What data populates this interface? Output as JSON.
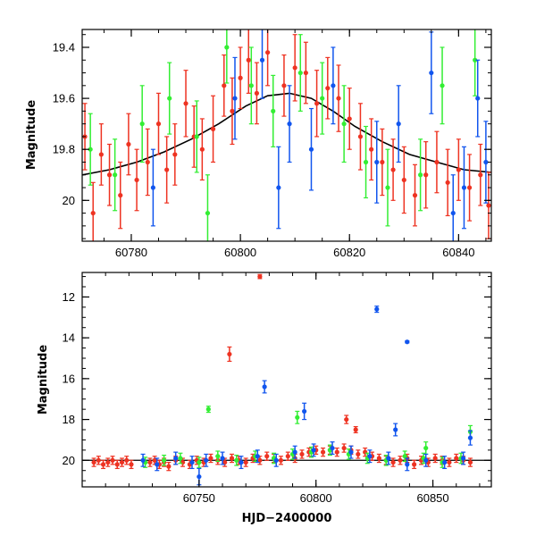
{
  "chart_data": [
    {
      "type": "scatter",
      "title": "",
      "xlabel": "",
      "ylabel": "Magnitude",
      "xlim": [
        60771,
        60846
      ],
      "ylim": [
        19.33,
        20.16
      ],
      "y_inverted": true,
      "grid": false,
      "xticks": [
        60780,
        60800,
        60820,
        60840
      ],
      "yticks": [
        19.4,
        19.6,
        19.8,
        20.0
      ],
      "ytick_labels": [
        "19.4",
        "19.6",
        "19.8",
        "20"
      ],
      "model_curve": {
        "color": "#000000",
        "x": [
          60771,
          60776,
          60781,
          60786,
          60791,
          60796,
          60801,
          60805,
          60809,
          60813,
          60817,
          60821,
          60826,
          60831,
          60836,
          60841,
          60846
        ],
        "y": [
          19.9,
          19.88,
          19.85,
          19.81,
          19.76,
          19.7,
          19.63,
          19.59,
          19.58,
          19.6,
          19.65,
          19.71,
          19.77,
          19.82,
          19.85,
          19.88,
          19.89
        ]
      },
      "series": [
        {
          "color": "#ee3322",
          "x": [
            60771.5,
            60773,
            60774.5,
            60776,
            60778,
            60779.5,
            60781,
            60783,
            60785,
            60786.5,
            60788,
            60790,
            60791.5,
            60793,
            60795,
            60797,
            60798.5,
            60800,
            60801.5,
            60803,
            60805,
            60808,
            60810,
            60812,
            60814,
            60816,
            60818,
            60820,
            60822,
            60824,
            60826,
            60828,
            60830,
            60832,
            60834,
            60836,
            60838,
            60840,
            60842,
            60844,
            60845.5
          ],
          "y": [
            19.75,
            20.05,
            19.82,
            19.9,
            19.98,
            19.78,
            19.92,
            19.85,
            19.7,
            19.88,
            19.82,
            19.62,
            19.75,
            19.8,
            19.72,
            19.55,
            19.65,
            19.52,
            19.45,
            19.58,
            19.42,
            19.55,
            19.48,
            19.5,
            19.62,
            19.56,
            19.6,
            19.68,
            19.75,
            19.8,
            19.85,
            19.88,
            19.92,
            19.98,
            19.9,
            19.85,
            19.93,
            19.88,
            19.95,
            19.9,
            20.02
          ],
          "err": [
            0.13,
            0.12,
            0.12,
            0.12,
            0.13,
            0.12,
            0.12,
            0.13,
            0.12,
            0.13,
            0.12,
            0.13,
            0.12,
            0.12,
            0.13,
            0.12,
            0.13,
            0.12,
            0.13,
            0.12,
            0.13,
            0.12,
            0.13,
            0.12,
            0.13,
            0.12,
            0.13,
            0.12,
            0.13,
            0.12,
            0.13,
            0.12,
            0.13,
            0.12,
            0.13,
            0.12,
            0.13,
            0.12,
            0.13,
            0.12,
            0.13
          ]
        },
        {
          "color": "#33ee33",
          "x": [
            60772.5,
            60777,
            60782,
            60787,
            60792,
            60794,
            60797.5,
            60802,
            60806,
            60811,
            60815,
            60819,
            60823,
            60827,
            60833,
            60837,
            60843
          ],
          "y": [
            19.8,
            19.9,
            19.7,
            19.6,
            19.75,
            20.05,
            19.4,
            19.55,
            19.65,
            19.5,
            19.6,
            19.7,
            19.85,
            19.95,
            19.9,
            19.55,
            19.45
          ],
          "err": [
            0.14,
            0.14,
            0.15,
            0.14,
            0.14,
            0.15,
            0.14,
            0.15,
            0.14,
            0.15,
            0.14,
            0.15,
            0.14,
            0.15,
            0.14,
            0.15,
            0.14
          ]
        },
        {
          "color": "#1155ee",
          "x": [
            60784,
            60799,
            60804,
            60807,
            60809,
            60813,
            60817,
            60825,
            60829,
            60835,
            60839,
            60841,
            60843.5,
            60845
          ],
          "y": [
            19.95,
            19.6,
            19.45,
            19.95,
            19.7,
            19.8,
            19.55,
            19.85,
            19.7,
            19.5,
            20.05,
            19.95,
            19.6,
            19.85
          ],
          "err": [
            0.15,
            0.16,
            0.15,
            0.16,
            0.15,
            0.16,
            0.15,
            0.16,
            0.15,
            0.16,
            0.15,
            0.16,
            0.15,
            0.16
          ]
        }
      ]
    },
    {
      "type": "scatter",
      "title": "",
      "xlabel": "HJD−2400000",
      "ylabel": "Magnitude",
      "xlim": [
        60700,
        60875
      ],
      "ylim": [
        10.8,
        21.3
      ],
      "y_inverted": true,
      "grid": false,
      "xticks": [
        60750,
        60800,
        60850
      ],
      "yticks": [
        12,
        14,
        16,
        18,
        20
      ],
      "ytick_labels": [
        "12",
        "14",
        "16",
        "18",
        "20"
      ],
      "reference_line": {
        "y": 20.0,
        "color": "#000000"
      },
      "series": [
        {
          "color": "#ee3322",
          "x": [
            60705,
            60707,
            60709,
            60711,
            60713,
            60715,
            60717,
            60719,
            60721,
            60729,
            60731,
            60733,
            60735,
            60737,
            60740,
            60743,
            60746,
            60749,
            60752,
            60755,
            60758,
            60761,
            60764,
            60767,
            60770,
            60773,
            60776,
            60779,
            60782,
            60785,
            60788,
            60791,
            60794,
            60797,
            60800,
            60803,
            60806,
            60809,
            60812,
            60815,
            60818,
            60821,
            60824,
            60827,
            60830,
            60833,
            60836,
            60839,
            60842,
            60845,
            60848,
            60851,
            60854,
            60857,
            60860,
            60863,
            60866,
            60763,
            60776,
            60813,
            60817
          ],
          "y": [
            20.1,
            20.0,
            20.2,
            20.1,
            20.0,
            20.2,
            20.1,
            20.0,
            20.2,
            20.1,
            20.0,
            20.2,
            20.1,
            20.3,
            20.0,
            20.1,
            20.2,
            20.0,
            20.1,
            19.9,
            20.0,
            20.1,
            19.9,
            20.0,
            20.1,
            19.9,
            20.0,
            19.8,
            19.9,
            20.0,
            19.8,
            19.9,
            19.7,
            19.6,
            19.5,
            19.6,
            19.5,
            19.6,
            19.4,
            19.5,
            19.7,
            19.6,
            19.8,
            19.9,
            20.0,
            20.1,
            20.0,
            19.9,
            20.2,
            20.0,
            20.1,
            19.9,
            20.0,
            20.1,
            19.9,
            20.0,
            20.1,
            14.8,
            11.0,
            18.0,
            18.5
          ],
          "err": [
            0.2,
            0.2,
            0.2,
            0.2,
            0.2,
            0.2,
            0.2,
            0.2,
            0.2,
            0.2,
            0.2,
            0.2,
            0.2,
            0.2,
            0.2,
            0.2,
            0.2,
            0.2,
            0.2,
            0.2,
            0.2,
            0.2,
            0.2,
            0.2,
            0.2,
            0.2,
            0.2,
            0.2,
            0.2,
            0.2,
            0.2,
            0.2,
            0.2,
            0.2,
            0.2,
            0.2,
            0.2,
            0.2,
            0.2,
            0.2,
            0.2,
            0.2,
            0.2,
            0.2,
            0.2,
            0.2,
            0.2,
            0.2,
            0.2,
            0.2,
            0.2,
            0.2,
            0.2,
            0.2,
            0.2,
            0.2,
            0.2,
            0.35,
            0.1,
            0.2,
            0.15
          ]
        },
        {
          "color": "#33ee33",
          "x": [
            60727,
            60735,
            60742,
            60750,
            60758,
            60766,
            60774,
            60782,
            60790,
            60798,
            60806,
            60814,
            60822,
            60830,
            60838,
            60846,
            60854,
            60862,
            60754,
            60792,
            60866,
            60847
          ],
          "y": [
            20.1,
            20.0,
            19.9,
            20.1,
            19.8,
            20.0,
            19.8,
            19.9,
            19.7,
            19.6,
            19.5,
            19.7,
            19.9,
            20.0,
            19.8,
            19.9,
            20.1,
            19.9,
            17.5,
            17.9,
            18.6,
            19.4
          ],
          "err": [
            0.25,
            0.25,
            0.25,
            0.25,
            0.25,
            0.25,
            0.25,
            0.25,
            0.25,
            0.25,
            0.25,
            0.25,
            0.25,
            0.25,
            0.25,
            0.25,
            0.25,
            0.25,
            0.15,
            0.3,
            0.3,
            0.3
          ],
          "extra_points": 0
        },
        {
          "color": "#1155ee",
          "x": [
            60726,
            60732,
            60740,
            60747,
            60753,
            60760,
            60768,
            60775,
            60783,
            60791,
            60799,
            60807,
            60815,
            60823,
            60831,
            60839,
            60847,
            60855,
            60863,
            60778,
            60795,
            60826,
            60839,
            60866,
            60834,
            60750
          ],
          "y": [
            20.0,
            20.2,
            19.9,
            20.1,
            20.0,
            19.9,
            20.1,
            19.8,
            20.0,
            19.6,
            19.5,
            19.4,
            19.6,
            19.8,
            19.9,
            20.2,
            20.0,
            20.1,
            19.9,
            16.4,
            17.6,
            12.6,
            14.2,
            18.9,
            18.5,
            20.8
          ],
          "err": [
            0.3,
            0.3,
            0.3,
            0.3,
            0.3,
            0.3,
            0.3,
            0.3,
            0.3,
            0.3,
            0.3,
            0.3,
            0.3,
            0.3,
            0.3,
            0.3,
            0.3,
            0.3,
            0.3,
            0.3,
            0.4,
            0.15,
            0.05,
            0.35,
            0.3,
            0.4
          ]
        }
      ]
    }
  ]
}
